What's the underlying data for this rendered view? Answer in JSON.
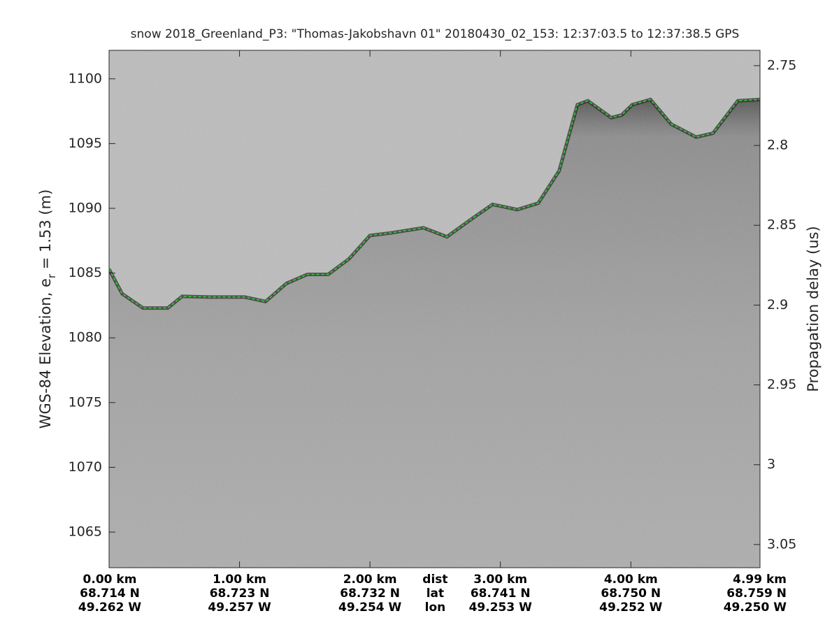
{
  "chart_data": {
    "type": "line",
    "title": "snow 2018_Greenland_P3: \"Thomas-Jakobshavn 01\"  20180430_02_153: 12:37:03.5 to 12:37:38.5 GPS",
    "ylabel": {
      "text": "WGS-84 Elevation, e",
      "sub": "r",
      "rest": " = 1.53 (m)"
    },
    "y2label": "Propagation delay (us)",
    "xlim": [
      0,
      4.99
    ],
    "xticks": [
      {
        "value": 0,
        "label": "0.00 km"
      },
      {
        "value": 1,
        "label": "1.00 km"
      },
      {
        "value": 2,
        "label": "2.00 km"
      },
      {
        "value": 3,
        "label": "3.00 km"
      },
      {
        "value": 4,
        "label": "4.00 km"
      },
      {
        "value": 4.99,
        "label": "4.99 km"
      }
    ],
    "xtick_lat": [
      "68.714 N",
      "68.723 N",
      "68.732 N",
      "68.741 N",
      "68.750 N",
      "68.759 N"
    ],
    "xtick_lon": [
      "49.262 W",
      "49.257 W",
      "49.254 W",
      "49.253 W",
      "49.252 W",
      "49.250 W"
    ],
    "row_labels": [
      "dist",
      "lat",
      "lon"
    ],
    "ylim": [
      1062.25,
      1102.2
    ],
    "yticks": [
      1065,
      1070,
      1075,
      1080,
      1085,
      1090,
      1095,
      1100
    ],
    "y2lim": [
      3.0645,
      2.7404
    ],
    "y2ticks": [
      2.75,
      2.8,
      2.85,
      2.9,
      2.95,
      3,
      3.05
    ],
    "series": [
      {
        "color": "#2fd12f",
        "x": [
          0,
          0.1,
          0.26,
          0.45,
          0.56,
          0.77,
          1.04,
          1.2,
          1.36,
          1.52,
          1.68,
          1.84,
          2.0,
          2.16,
          2.41,
          2.59,
          2.81,
          2.94,
          3.13,
          3.29,
          3.45,
          3.59,
          3.67,
          3.85,
          3.93,
          4.01,
          4.15,
          4.31,
          4.5,
          4.63,
          4.82,
          4.99
        ],
        "values": [
          1085.3,
          1083.4,
          1082.3,
          1082.3,
          1083.2,
          1083.15,
          1083.15,
          1082.8,
          1084.2,
          1084.9,
          1084.9,
          1086.1,
          1087.9,
          1088.1,
          1088.5,
          1087.8,
          1089.4,
          1090.3,
          1089.9,
          1090.4,
          1092.9,
          1098.0,
          1098.3,
          1097.0,
          1097.2,
          1098.0,
          1098.4,
          1096.5,
          1095.5,
          1095.8,
          1098.3,
          1098.4
        ]
      }
    ]
  }
}
